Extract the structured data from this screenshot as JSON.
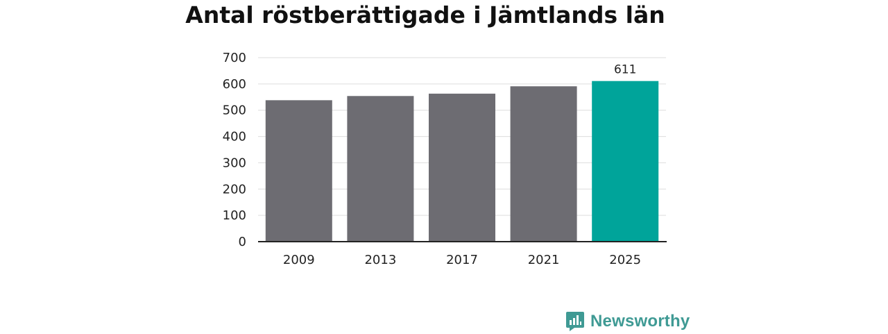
{
  "chart_data": {
    "type": "bar",
    "title": "Antal röstberättigade i Jämtlands län",
    "xlabel": "",
    "ylabel": "",
    "categories": [
      "2009",
      "2013",
      "2017",
      "2021",
      "2025"
    ],
    "values": [
      538,
      554,
      563,
      591,
      611
    ],
    "data_labels": [
      "",
      "",
      "",
      "",
      "611"
    ],
    "ylim": [
      0,
      700
    ],
    "yticks": [
      0,
      100,
      200,
      300,
      400,
      500,
      600,
      700
    ],
    "grid": true,
    "legend": "none",
    "colors": {
      "default_bar": "#6d6c72",
      "highlight_bar": "#00a49a",
      "grid": "#dddddd",
      "axis": "#222222"
    },
    "highlight_index": 4
  },
  "brand": {
    "name": "Newsworthy",
    "icon": "newsworthy-logo-icon",
    "color": "#3f9a94"
  }
}
